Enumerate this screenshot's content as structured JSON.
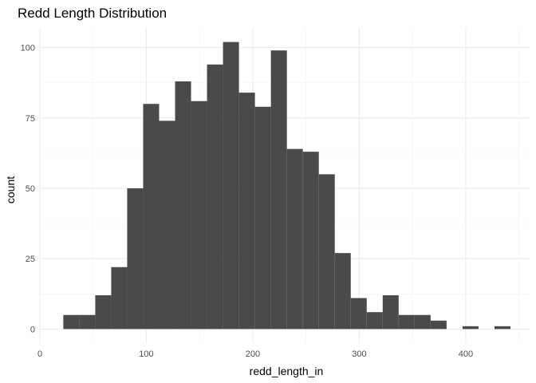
{
  "chart_data": {
    "type": "bar",
    "subtype": "histogram",
    "title": "Redd Length Distribution",
    "xlabel": "redd_length_in",
    "ylabel": "count",
    "xlim": [
      0,
      460
    ],
    "ylim": [
      -5,
      107
    ],
    "x_ticks": [
      0,
      100,
      200,
      300,
      400
    ],
    "y_ticks": [
      0,
      25,
      50,
      75,
      100
    ],
    "bin_width": 15,
    "bin_starts": [
      22,
      37,
      52,
      67,
      82,
      97,
      112,
      127,
      142,
      157,
      172,
      187,
      202,
      217,
      232,
      247,
      262,
      277,
      292,
      307,
      322,
      337,
      352,
      367,
      382,
      397,
      412,
      427
    ],
    "values": [
      5,
      5,
      12,
      22,
      50,
      80,
      74,
      88,
      81,
      94,
      102,
      84,
      79,
      99,
      64,
      63,
      55,
      27,
      11,
      6,
      12,
      5,
      5,
      3,
      0,
      1,
      0,
      1
    ],
    "bar_color": "#4a4a4a",
    "grid": true,
    "legend": "none"
  }
}
